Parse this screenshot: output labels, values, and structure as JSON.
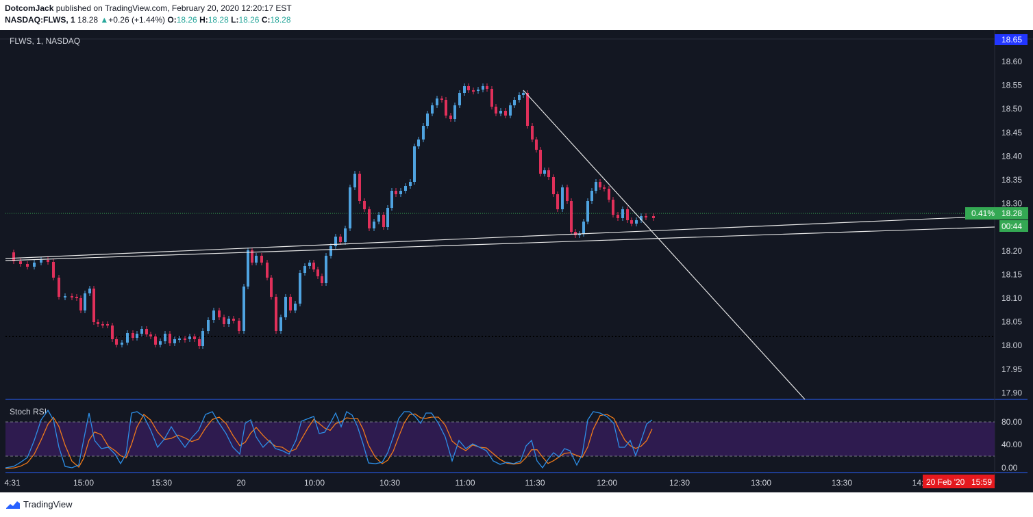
{
  "header": {
    "author": "DotcomJack",
    "published_text": " published on TradingView.com, February 20, 2020 12:20:17 EST",
    "symbol": "NASDAQ:FLWS, 1",
    "last": "18.28",
    "arrow": "▲",
    "change": "+0.26 (+1.44%)",
    "o_label": "O:",
    "o_val": "18.26",
    "h_label": "H:",
    "h_val": "18.28",
    "l_label": "L:",
    "l_val": "18.26",
    "c_label": "C:",
    "c_val": "18.28"
  },
  "chart": {
    "legend": "FLWS, 1, NASDAQ",
    "price_axis": [
      "18.60",
      "18.55",
      "18.50",
      "18.45",
      "18.40",
      "18.35",
      "18.30",
      "18.25",
      "18.20",
      "18.15",
      "18.10",
      "18.05",
      "18.00",
      "17.95",
      "17.90"
    ],
    "top_price_label": "18.65",
    "current_price": "18.28",
    "change_pct": "0.41%",
    "countdown": "00:44",
    "stoch_title": "Stoch RSI",
    "stoch_axis": [
      "80.00",
      "40.00",
      "0.00"
    ],
    "time_axis": [
      "4:31",
      "15:00",
      "15:30",
      "20",
      "10:00",
      "10:30",
      "11:00",
      "11:30",
      "12:00",
      "12:30",
      "13:00",
      "13:30",
      "14:"
    ],
    "crosshair_date": "20 Feb '20",
    "crosshair_time": "15:59",
    "colors": {
      "up": "#4fa3e0",
      "down": "#e0305a",
      "bg": "#131722",
      "stoch_band": "#2e1b4f",
      "k_line": "#2d8fe8",
      "d_line": "#f07a1a",
      "blue_tag": "#2236ff",
      "green_tag": "#34a853",
      "red_tag": "#e5191e"
    }
  },
  "footer": {
    "brand": "TradingView",
    "icon": "tradingview-logo-icon"
  }
}
